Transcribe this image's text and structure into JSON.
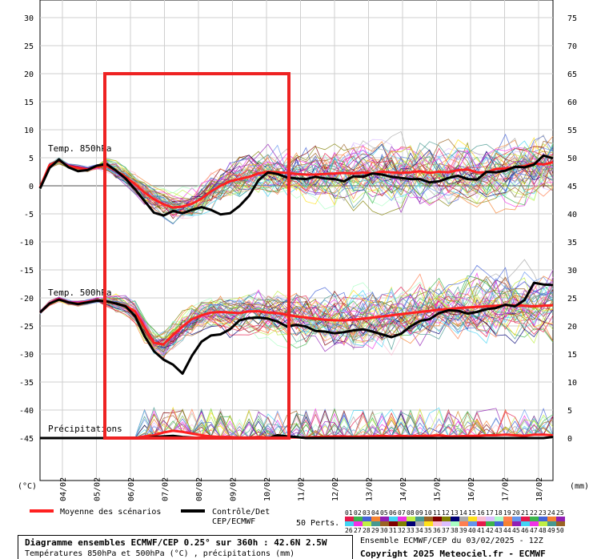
{
  "chart_data": {
    "type": "line",
    "left_axis": {
      "ticks": [
        30,
        25,
        20,
        15,
        10,
        5,
        0,
        -5,
        -10,
        -15,
        -20,
        -25,
        -30,
        -35,
        -40,
        -45
      ],
      "unit": "(°C)"
    },
    "right_axis": {
      "ticks": [
        75,
        70,
        65,
        60,
        55,
        50,
        45,
        40,
        35,
        30,
        25,
        20,
        15,
        10,
        5,
        0
      ],
      "unit": "(mm)"
    },
    "x_ticks": [
      "04/02",
      "05/02",
      "06/02",
      "07/02",
      "08/02",
      "09/02",
      "10/02",
      "11/02",
      "12/02",
      "13/02",
      "14/02",
      "15/02",
      "16/02",
      "17/02",
      "18/02"
    ],
    "grid": true,
    "annotations": {
      "t850": "Temp. 850hPa",
      "t500": "Temp. 500hPa",
      "precip": "Précipitations"
    },
    "series": [
      {
        "name": "Moyenne des scénarios",
        "group": "t850",
        "color": "#ff2020",
        "values": [
          -0.3,
          3.7,
          4.5,
          3.5,
          3.2,
          2.9,
          3.4,
          3.6,
          2.7,
          1.6,
          0.3,
          -1.2,
          -2.4,
          -3.3,
          -3.9,
          -3.7,
          -3.2,
          -2.3,
          -1.0,
          0.0,
          0.8,
          1.2,
          1.6,
          2.2,
          2.5,
          2.4,
          2.3,
          2.1,
          2.0,
          2.0,
          2.1,
          2.2,
          2.3,
          2.2,
          2.4,
          2.2,
          2.5,
          2.4,
          2.3,
          2.4,
          2.6,
          2.3,
          2.5,
          2.4,
          2.8,
          2.9,
          2.4,
          2.4,
          3.0,
          3.1,
          3.3,
          3.5,
          4.0,
          3.8,
          4.2
        ]
      },
      {
        "name": "Contrôle/Det CEP/ECMWF",
        "group": "t850",
        "color": "#000000",
        "values": [
          -0.5,
          3.2,
          4.7,
          3.3,
          2.6,
          2.8,
          3.6,
          3.9,
          2.7,
          1.3,
          -0.6,
          -2.7,
          -4.8,
          -5.3,
          -4.5,
          -4.9,
          -4.3,
          -3.8,
          -4.3,
          -5.1,
          -4.9,
          -3.6,
          -1.8,
          1.0,
          2.4,
          2.1,
          1.5,
          1.3,
          1.2,
          1.6,
          1.3,
          1.2,
          0.8,
          1.7,
          1.6,
          2.2,
          2.0,
          1.6,
          1.4,
          1.2,
          1.2,
          0.6,
          0.8,
          1.4,
          1.8,
          1.2,
          1.1,
          2.5,
          2.4,
          2.7,
          3.4,
          3.3,
          3.8,
          5.4,
          4.9
        ]
      },
      {
        "name": "Moyenne des scénarios",
        "group": "t500",
        "color": "#ff2020",
        "values": [
          -22.6,
          -21.0,
          -20.2,
          -20.8,
          -21.0,
          -20.7,
          -20.4,
          -20.6,
          -21.0,
          -21.4,
          -22.4,
          -25.2,
          -28.0,
          -28.3,
          -26.6,
          -25.1,
          -23.8,
          -23.1,
          -22.6,
          -22.5,
          -22.6,
          -22.7,
          -22.4,
          -22.4,
          -22.6,
          -22.7,
          -23.0,
          -23.3,
          -23.5,
          -23.7,
          -23.9,
          -24.0,
          -24.0,
          -23.9,
          -23.7,
          -23.5,
          -23.3,
          -23.1,
          -22.9,
          -22.7,
          -22.5,
          -22.3,
          -22.1,
          -22.0,
          -21.8,
          -21.7,
          -21.6,
          -21.5,
          -21.4,
          -21.3,
          -21.3,
          -21.4,
          -21.5,
          -21.4,
          -21.3
        ]
      },
      {
        "name": "Contrôle/Det CEP/ECMWF",
        "group": "t500",
        "color": "#000000",
        "values": [
          -22.6,
          -21.0,
          -20.3,
          -20.8,
          -21.1,
          -20.8,
          -20.5,
          -20.6,
          -21.0,
          -21.5,
          -23.2,
          -26.8,
          -29.5,
          -31.0,
          -31.9,
          -33.5,
          -30.3,
          -27.8,
          -26.7,
          -26.5,
          -25.6,
          -24.0,
          -23.6,
          -23.5,
          -23.7,
          -24.2,
          -25.1,
          -24.8,
          -25.1,
          -25.9,
          -26.0,
          -26.3,
          -26.1,
          -25.8,
          -25.6,
          -26.0,
          -26.5,
          -27.0,
          -26.4,
          -25.1,
          -24.1,
          -23.8,
          -22.7,
          -22.2,
          -22.3,
          -22.8,
          -22.5,
          -22.0,
          -21.8,
          -21.2,
          -21.5,
          -20.4,
          -17.3,
          -17.6,
          -17.7
        ]
      },
      {
        "name": "Moyenne des scénarios",
        "group": "precip",
        "color": "#ff2020",
        "values": [
          0,
          0,
          0,
          0,
          0,
          0,
          0,
          0,
          0,
          0,
          0,
          0.3,
          0.5,
          1.0,
          1.3,
          1.1,
          0.8,
          0.5,
          0.3,
          0.2,
          0.2,
          0.1,
          0.1,
          0.2,
          0.1,
          0.1,
          0.1,
          0.1,
          0.1,
          0.2,
          0.2,
          0.3,
          0.3,
          0.2,
          0.3,
          0.3,
          0.4,
          0.3,
          0.4,
          0.3,
          0.4,
          0.4,
          0.5,
          0.3,
          0.3,
          0.4,
          0.4,
          0.5,
          0.5,
          0.6,
          0.5,
          0.4,
          0.6,
          0.6,
          0.5
        ]
      },
      {
        "name": "Contrôle/Det CEP/ECMWF",
        "group": "precip",
        "color": "#000000",
        "values": [
          0,
          0,
          0,
          0,
          0,
          0,
          0,
          0,
          0,
          0,
          0,
          0,
          0.2,
          0.3,
          0.4,
          0.2,
          0.1,
          0,
          0,
          0,
          0,
          0,
          0,
          0,
          0,
          0.5,
          0.3,
          0.2,
          0,
          0,
          0,
          0,
          0,
          0,
          0,
          0,
          0,
          0,
          0,
          0,
          0,
          0,
          0,
          0,
          0,
          0,
          0,
          0,
          0,
          0,
          0,
          0,
          0,
          0,
          0.2
        ]
      }
    ],
    "legend": {
      "mean_label": "Moyenne des scénarios",
      "control_label_1": "Contrôle/Det",
      "control_label_2": "CEP/ECMWF",
      "perts_label": "50 Perts.",
      "perts_row1": [
        "01",
        "02",
        "03",
        "04",
        "05",
        "06",
        "07",
        "08",
        "09",
        "10",
        "11",
        "12",
        "13",
        "14",
        "15",
        "16",
        "17",
        "18",
        "19",
        "20",
        "21",
        "22",
        "23",
        "24",
        "25"
      ],
      "perts_row2": [
        "26",
        "27",
        "28",
        "29",
        "30",
        "31",
        "32",
        "33",
        "34",
        "35",
        "36",
        "37",
        "38",
        "39",
        "40",
        "41",
        "42",
        "43",
        "44",
        "45",
        "46",
        "47",
        "48",
        "49",
        "50"
      ]
    }
  },
  "title_box": {
    "line1": "Diagramme ensembles ECMWF/CEP 0.25° sur 360h : 42.6N 2.5W",
    "line2": "Températures 850hPa et 500hPa (°C) , précipitations (mm)"
  },
  "info": {
    "line1": "Ensemble ECMWF/CEP du 03/02/2025 - 12Z",
    "line2": "Copyright 2025 Meteociel.fr - ECMWF"
  },
  "highlight_color": "#ee2222"
}
